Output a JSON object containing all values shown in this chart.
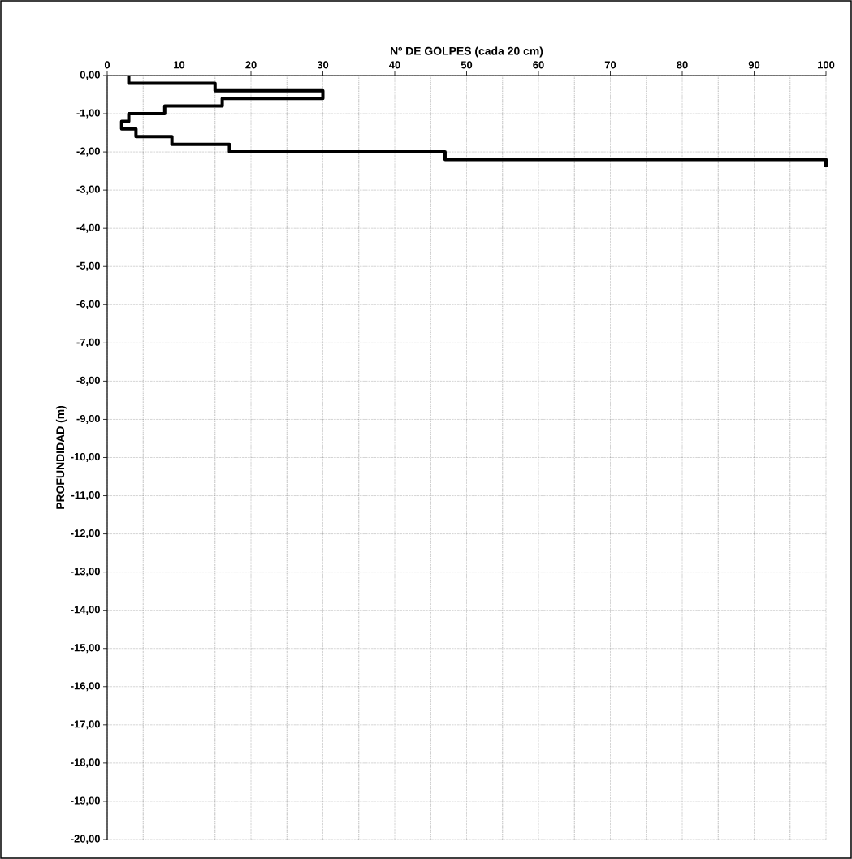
{
  "chart_data": {
    "type": "line",
    "xlabel": "Nº DE GOLPES  (cada 20 cm)",
    "ylabel": "PROFUNDIDAD (m)",
    "x": [
      3,
      3,
      15,
      15,
      30,
      30,
      16,
      16,
      8,
      8,
      3,
      3,
      2,
      2,
      4,
      4,
      9,
      9,
      17,
      17,
      47,
      47,
      100,
      100
    ],
    "values": [
      0,
      -0.2,
      -0.2,
      -0.4,
      -0.4,
      -0.6,
      -0.6,
      -0.8,
      -0.8,
      -1.0,
      -1.0,
      -1.2,
      -1.2,
      -1.4,
      -1.4,
      -1.6,
      -1.6,
      -1.8,
      -1.8,
      -2.0,
      -2.0,
      -2.2,
      -2.2,
      -2.4
    ],
    "color": "#000000",
    "line_style": "solid",
    "grid": true,
    "xlim": [
      0,
      100
    ],
    "xticks": [
      0,
      10,
      20,
      30,
      40,
      50,
      60,
      70,
      80,
      90,
      100
    ],
    "ylim": [
      -20,
      0
    ],
    "yticks": [
      {
        "value": -20,
        "label": "-20,00"
      },
      {
        "value": -19,
        "label": "-19,00"
      },
      {
        "value": -18,
        "label": "-18,00"
      },
      {
        "value": -17,
        "label": "-17,00"
      },
      {
        "value": -16,
        "label": "-16,00"
      },
      {
        "value": -15,
        "label": "-15,00"
      },
      {
        "value": -14,
        "label": "-14,00"
      },
      {
        "value": -13,
        "label": "-13,00"
      },
      {
        "value": -12,
        "label": "-12,00"
      },
      {
        "value": -11,
        "label": "-11,00"
      },
      {
        "value": -10,
        "label": "-10,00"
      },
      {
        "value": -9,
        "label": "-9,00"
      },
      {
        "value": -8,
        "label": "-8,00"
      },
      {
        "value": -7,
        "label": "-7,00"
      },
      {
        "value": -6,
        "label": "-6,00"
      },
      {
        "value": -5,
        "label": "-5,00"
      },
      {
        "value": -4,
        "label": "-4,00"
      },
      {
        "value": -3,
        "label": "-3,00"
      },
      {
        "value": -2,
        "label": "-2,00"
      },
      {
        "value": -1,
        "label": "-1,00"
      },
      {
        "value": 0,
        "label": "0,00"
      }
    ]
  }
}
